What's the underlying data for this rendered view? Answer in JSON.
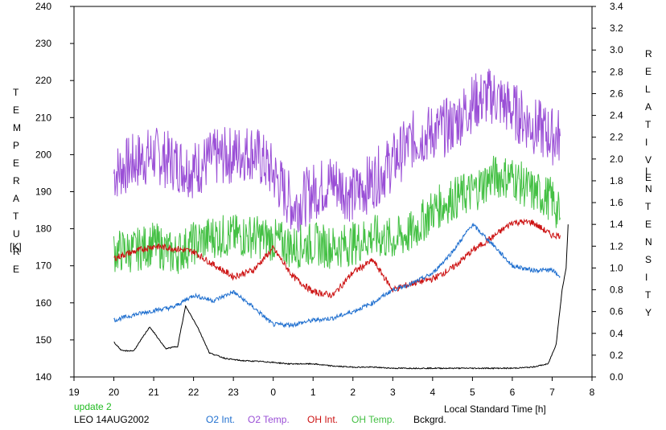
{
  "chart_data": {
    "type": "line",
    "left_axis_label_letters": [
      "T",
      "E",
      "M",
      "P",
      "E",
      "R",
      "A",
      "T",
      "U",
      "R",
      "E"
    ],
    "left_axis_unit": "[K]",
    "right_axis_label_word1": [
      "R",
      "E",
      "L",
      "A",
      "T",
      "I",
      "V",
      "E"
    ],
    "right_axis_label_word2": [
      "I",
      "N",
      "T",
      "E",
      "N",
      "S",
      "I",
      "T",
      "Y"
    ],
    "xlabel": "Local Standard Time [h]",
    "x_ticks": [
      "19",
      "20",
      "21",
      "22",
      "23",
      "0",
      "1",
      "2",
      "3",
      "4",
      "5",
      "6",
      "7",
      "8"
    ],
    "y_left_ticks": [
      "140",
      "150",
      "160",
      "170",
      "180",
      "190",
      "200",
      "210",
      "220",
      "230",
      "240"
    ],
    "y_right_ticks": [
      "0.0",
      "0.2",
      "0.4",
      "0.6",
      "0.8",
      "1.0",
      "1.2",
      "1.4",
      "1.6",
      "1.8",
      "2.0",
      "2.2",
      "2.4",
      "2.6",
      "2.8",
      "3.0",
      "3.2",
      "3.4"
    ],
    "ylim_left": [
      140,
      240
    ],
    "ylim_right": [
      0,
      3.4
    ],
    "xlim": [
      19,
      32
    ],
    "note": "update 2",
    "station_date": "LEO 14AUG2002",
    "legend": [
      {
        "name": "O2 Int.",
        "color": "#1f6fcf"
      },
      {
        "name": "O2 Temp.",
        "color": "#9a4fd6"
      },
      {
        "name": "OH Int.",
        "color": "#cc1111"
      },
      {
        "name": "OH Temp.",
        "color": "#44c044"
      },
      {
        "name": "Bckgrd.",
        "color": "#000000"
      }
    ],
    "series": [
      {
        "name": "O2 Temp.",
        "axis": "left",
        "color": "#9a4fd6",
        "jitter": 8,
        "x": [
          20.0,
          20.5,
          21.0,
          21.5,
          22.0,
          22.5,
          23.0,
          23.5,
          24.0,
          24.5,
          25.0,
          25.5,
          26.0,
          26.5,
          27.0,
          27.5,
          28.0,
          28.5,
          29.0,
          29.5,
          30.0,
          30.5,
          31.0,
          31.2
        ],
        "values": [
          195,
          198,
          200,
          198,
          196,
          199,
          200,
          201,
          195,
          186,
          190,
          193,
          189,
          193,
          198,
          204,
          206,
          208,
          214,
          216,
          212,
          208,
          205,
          205
        ]
      },
      {
        "name": "OH Temp.",
        "axis": "left",
        "color": "#44c044",
        "jitter": 6,
        "x": [
          20.0,
          20.5,
          21.0,
          21.5,
          22.0,
          22.5,
          23.0,
          23.5,
          24.0,
          24.5,
          25.0,
          25.5,
          26.0,
          26.5,
          27.0,
          27.5,
          28.0,
          28.5,
          29.0,
          29.5,
          30.0,
          30.5,
          31.0,
          31.2
        ],
        "values": [
          174,
          174,
          176,
          173,
          176,
          178,
          178,
          178,
          177,
          175,
          176,
          175,
          176,
          178,
          177,
          179,
          185,
          188,
          190,
          194,
          194,
          190,
          188,
          183
        ]
      },
      {
        "name": "OH Int.",
        "axis": "right",
        "color": "#cc1111",
        "jitter": 0.03,
        "x": [
          20.0,
          20.5,
          21.0,
          21.5,
          22.0,
          22.5,
          23.0,
          23.5,
          24.0,
          24.5,
          25.0,
          25.5,
          26.0,
          26.5,
          27.0,
          27.5,
          28.0,
          28.5,
          29.0,
          29.5,
          30.0,
          30.5,
          31.0,
          31.2
        ],
        "values": [
          1.09,
          1.15,
          1.2,
          1.18,
          1.15,
          1.03,
          0.92,
          0.98,
          1.18,
          0.92,
          0.78,
          0.75,
          0.96,
          1.07,
          0.8,
          0.86,
          0.9,
          1.0,
          1.16,
          1.28,
          1.42,
          1.42,
          1.3,
          1.3
        ]
      },
      {
        "name": "O2 Int.",
        "axis": "right",
        "color": "#1f6fcf",
        "jitter": 0.02,
        "x": [
          20.0,
          20.5,
          21.0,
          21.5,
          22.0,
          22.5,
          23.0,
          23.5,
          24.0,
          24.5,
          25.0,
          25.5,
          26.0,
          26.5,
          27.0,
          27.5,
          28.0,
          28.5,
          29.0,
          29.5,
          30.0,
          30.5,
          31.0,
          31.2
        ],
        "values": [
          0.52,
          0.57,
          0.61,
          0.64,
          0.75,
          0.7,
          0.78,
          0.64,
          0.48,
          0.48,
          0.52,
          0.54,
          0.6,
          0.68,
          0.8,
          0.86,
          0.95,
          1.15,
          1.4,
          1.22,
          1.02,
          0.98,
          0.98,
          0.92
        ]
      },
      {
        "name": "Bckgrd.",
        "axis": "right",
        "color": "#000000",
        "jitter": 0.005,
        "x": [
          20.0,
          20.2,
          20.5,
          20.9,
          21.3,
          21.6,
          21.8,
          22.1,
          22.4,
          22.8,
          23.2,
          23.8,
          24.4,
          25.0,
          25.5,
          26.0,
          26.5,
          27.0,
          28.0,
          29.0,
          30.0,
          30.5,
          30.9,
          31.1,
          31.25,
          31.35,
          31.4
        ],
        "values": [
          0.32,
          0.24,
          0.24,
          0.46,
          0.26,
          0.28,
          0.65,
          0.46,
          0.22,
          0.17,
          0.15,
          0.14,
          0.12,
          0.12,
          0.1,
          0.09,
          0.09,
          0.08,
          0.08,
          0.08,
          0.08,
          0.09,
          0.12,
          0.3,
          0.8,
          1.0,
          1.4
        ]
      }
    ]
  }
}
